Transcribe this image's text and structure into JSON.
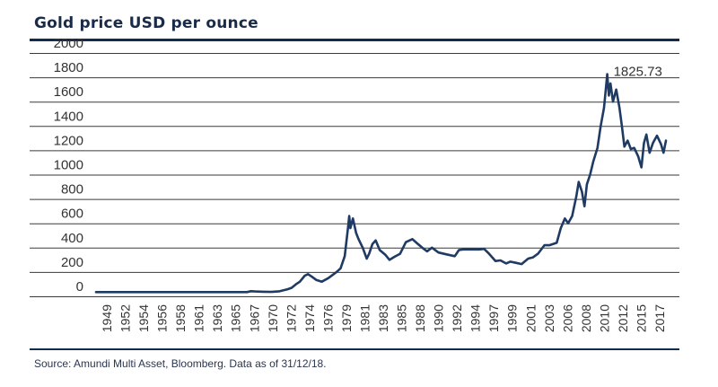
{
  "colors": {
    "line": "#1f3b63",
    "accent": "#132b4f",
    "grid": "#3a3a3a",
    "text": "#333333"
  },
  "page": {
    "title": "Gold price USD per ounce",
    "source": "Source: Amundi Multi Asset, Bloomberg. Data as of 31/12/18."
  },
  "chart_data": {
    "type": "line",
    "title": "Gold price USD per ounce",
    "xlabel": "",
    "ylabel": "",
    "ylim": [
      0,
      2000
    ],
    "yticks": [
      "0",
      "200",
      "400",
      "600",
      "800",
      "1000",
      "1200",
      "1400",
      "1600",
      "1800",
      "2000"
    ],
    "xticks": [
      "1949",
      "1952",
      "1954",
      "1956",
      "1958",
      "1961",
      "1963",
      "1965",
      "1967",
      "1970",
      "1972",
      "1974",
      "1976",
      "1979",
      "1981",
      "1983",
      "1985",
      "1988",
      "1990",
      "1992",
      "1994",
      "1997",
      "1999",
      "2001",
      "2003",
      "2006",
      "2008",
      "2010",
      "2012",
      "2015",
      "2017"
    ],
    "xrange": [
      1949,
      2018.9
    ],
    "grid": true,
    "annotation": {
      "label": "1825.73",
      "x": 2011.7,
      "y": 1825.73
    },
    "series": [
      {
        "name": "Gold price",
        "x": [
          1949.0,
          1960.0,
          1967.5,
          1968.0,
          1968.5,
          1969.5,
          1970.5,
          1971.5,
          1972.5,
          1973.0,
          1973.5,
          1974.0,
          1974.6,
          1975.0,
          1975.5,
          1976.0,
          1976.7,
          1977.5,
          1978.5,
          1979.0,
          1979.5,
          1979.9,
          1980.05,
          1980.2,
          1980.5,
          1980.9,
          1981.2,
          1981.7,
          1982.2,
          1982.5,
          1982.9,
          1983.3,
          1983.8,
          1984.5,
          1985.0,
          1985.6,
          1986.3,
          1987.0,
          1987.8,
          1988.4,
          1989.0,
          1989.6,
          1990.2,
          1991.0,
          1992.0,
          1993.0,
          1993.5,
          1994.0,
          1995.0,
          1996.0,
          1996.6,
          1997.2,
          1998.0,
          1998.6,
          1999.3,
          1999.8,
          2000.5,
          2001.2,
          2002.0,
          2002.6,
          2003.2,
          2004.0,
          2004.6,
          2005.5,
          2006.0,
          2006.5,
          2006.9,
          2007.4,
          2007.9,
          2008.2,
          2008.6,
          2008.9,
          2009.2,
          2009.6,
          2010.0,
          2010.5,
          2010.9,
          2011.3,
          2011.7,
          2011.9,
          2012.1,
          2012.4,
          2012.8,
          2013.2,
          2013.5,
          2013.8,
          2014.2,
          2014.6,
          2015.0,
          2015.5,
          2015.9,
          2016.2,
          2016.5,
          2016.9,
          2017.3,
          2017.8,
          2018.3,
          2018.6,
          2018.9
        ],
        "values": [
          35,
          35,
          35,
          42,
          40,
          38,
          36,
          41,
          58,
          70,
          98,
          120,
          170,
          182,
          160,
          135,
          120,
          150,
          200,
          230,
          330,
          560,
          660,
          560,
          640,
          520,
          470,
          400,
          310,
          350,
          430,
          460,
          380,
          340,
          300,
          325,
          350,
          445,
          470,
          435,
          400,
          370,
          400,
          360,
          345,
          330,
          380,
          385,
          385,
          385,
          390,
          350,
          290,
          295,
          270,
          285,
          275,
          265,
          310,
          320,
          350,
          420,
          420,
          440,
          560,
          640,
          600,
          660,
          820,
          940,
          860,
          740,
          920,
          1000,
          1110,
          1220,
          1400,
          1550,
          1825.73,
          1650,
          1750,
          1600,
          1700,
          1550,
          1400,
          1230,
          1280,
          1210,
          1220,
          1150,
          1060,
          1260,
          1330,
          1180,
          1260,
          1320,
          1250,
          1180,
          1280
        ]
      }
    ]
  }
}
